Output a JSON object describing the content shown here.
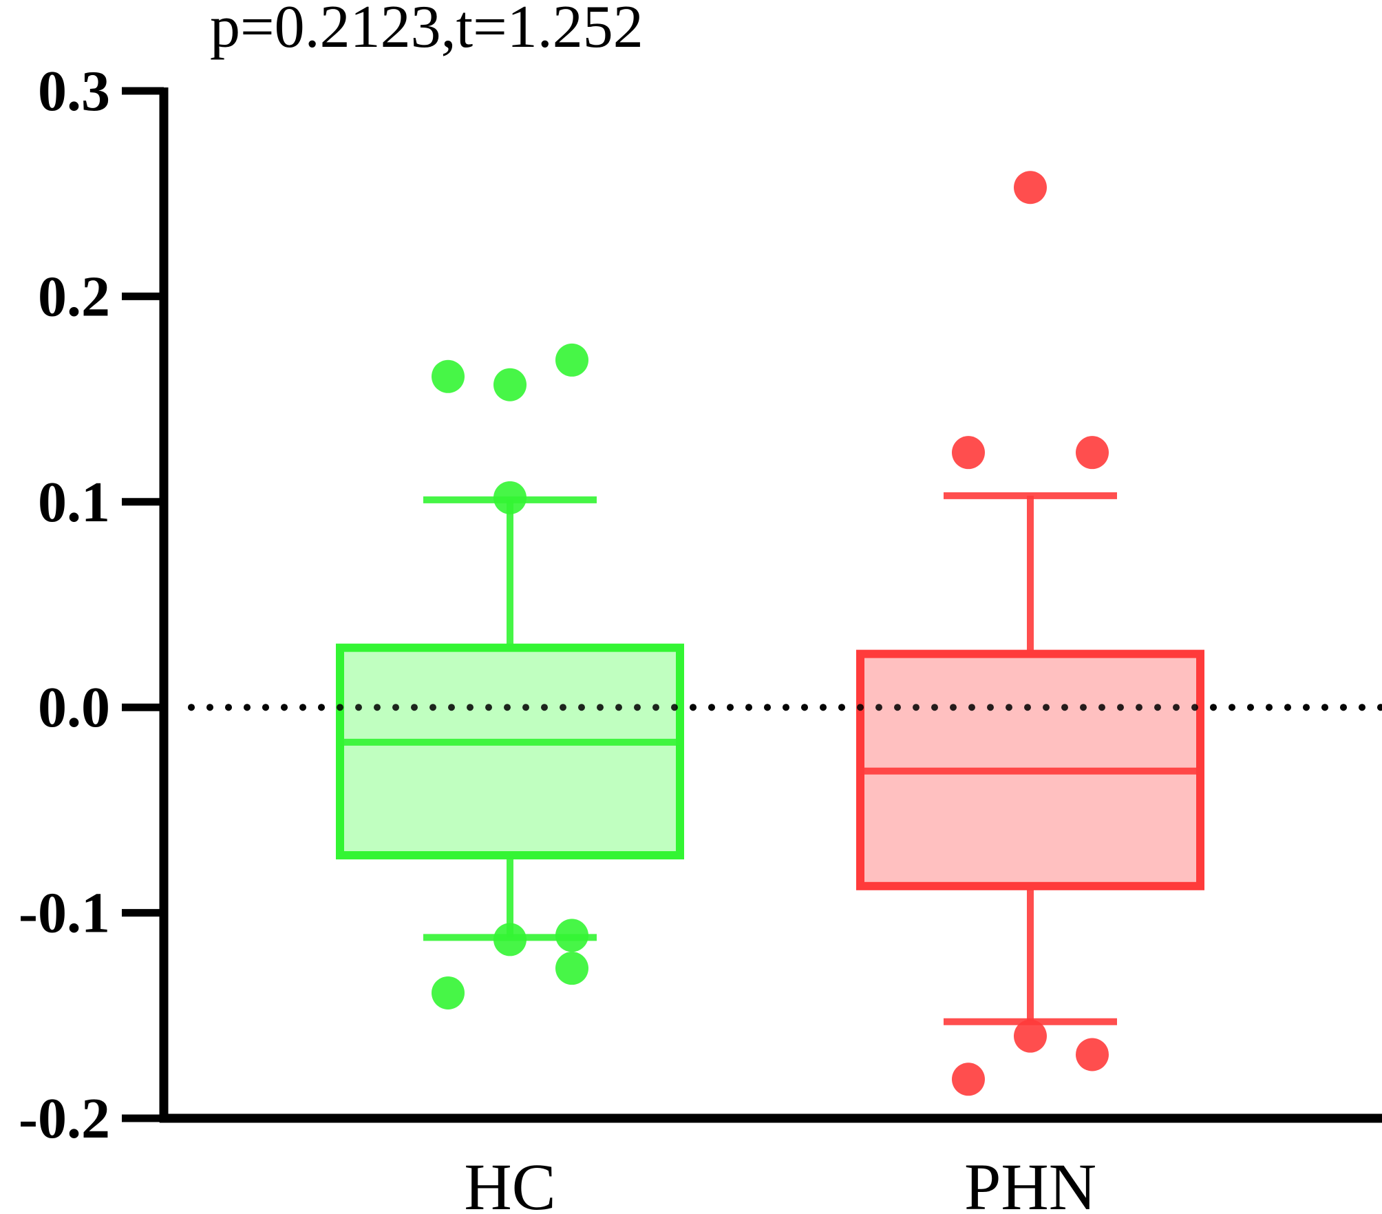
{
  "chart_data": {
    "type": "box",
    "title": "p=0.2123,t=1.252",
    "categories": [
      "HC",
      "PHN"
    ],
    "series": [
      {
        "name": "HC",
        "color": "#33f533",
        "fill": "#c0ffc0",
        "whisker_high": 0.101,
        "q3": 0.029,
        "median": -0.017,
        "q1": -0.072,
        "whisker_low": -0.112,
        "points": [
          0.161,
          0.157,
          0.169,
          0.102,
          -0.113,
          -0.111,
          -0.127,
          -0.139
        ]
      },
      {
        "name": "PHN",
        "color": "#ff3b3b",
        "fill": "#ffc0c0",
        "whisker_high": 0.103,
        "q3": 0.026,
        "median": -0.031,
        "q1": -0.087,
        "whisker_low": -0.153,
        "points": [
          0.253,
          0.124,
          0.124,
          -0.16,
          -0.169,
          -0.181
        ]
      }
    ],
    "ylim": [
      -0.2,
      0.3
    ],
    "yticks": [
      -0.2,
      -0.1,
      {
        "value": 0,
        "label": "0.0"
      },
      0.1,
      0.2,
      0.3
    ],
    "reference_line": 0
  }
}
